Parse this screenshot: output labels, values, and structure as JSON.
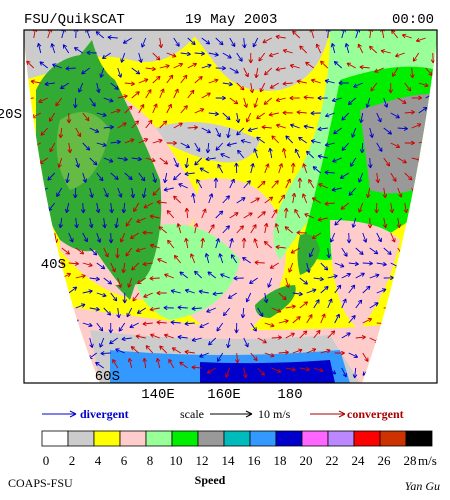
{
  "header": {
    "left": "FSU/QuikSCAT",
    "center": "19 May 2003",
    "right": "00:00"
  },
  "map": {
    "lat_labels": [
      "20S",
      "40S",
      "60S"
    ],
    "lon_labels": [
      "140E",
      "160E",
      "180"
    ]
  },
  "legend": {
    "divergent": "divergent",
    "scale": "scale",
    "scale_value": "10 m/s",
    "convergent": "convergent"
  },
  "colorbar": {
    "colors": [
      "#ffffff",
      "#cccccc",
      "#ffff00",
      "#ffcccc",
      "#99ff99",
      "#00ee00",
      "#999999",
      "#00bbbb",
      "#3399ff",
      "#0000cc",
      "#ff66ff",
      "#bb88ff",
      "#ff0000",
      "#cc3300",
      "#000000"
    ],
    "ticks": [
      0,
      2,
      4,
      6,
      8,
      10,
      12,
      14,
      16,
      18,
      20,
      22,
      24,
      26,
      28
    ],
    "unit": "m/s"
  },
  "footer": {
    "left": "COAPS-FSU",
    "center": "Speed",
    "right": "Yan Gu"
  }
}
